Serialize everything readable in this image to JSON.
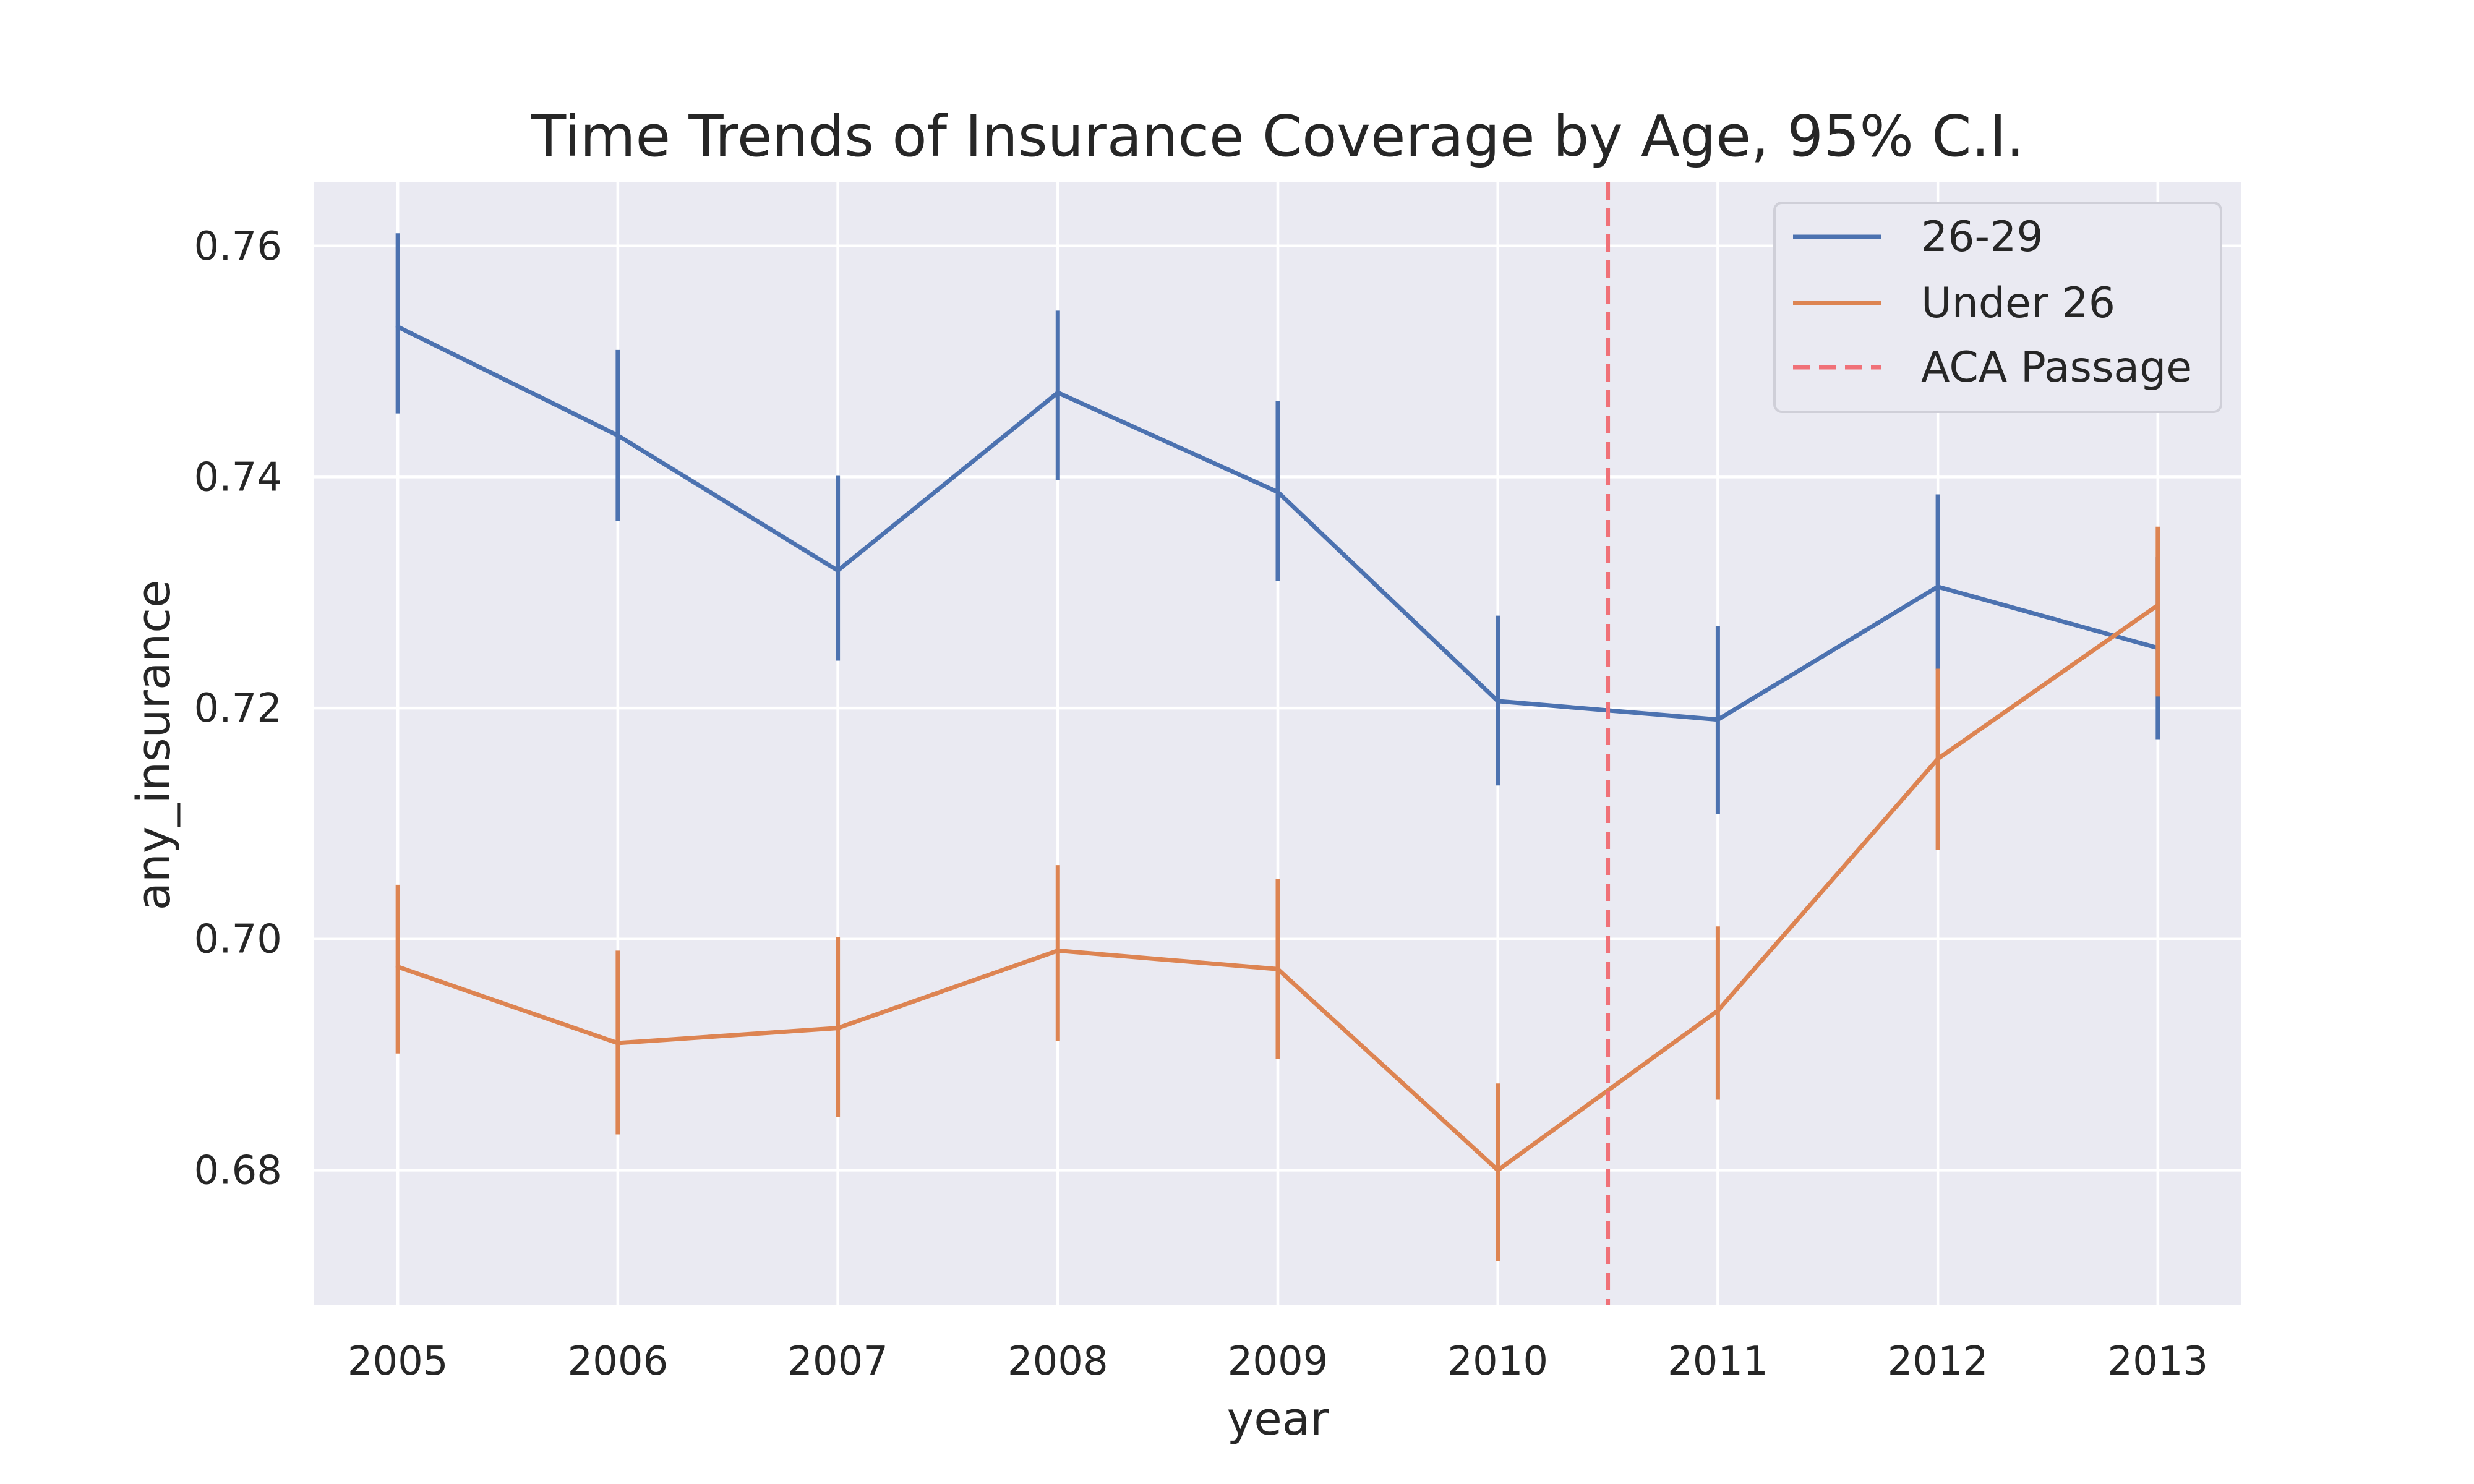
{
  "chart_data": {
    "type": "line",
    "title": "Time Trends of Insurance Coverage by Age, 95% C.I.",
    "xlabel": "year",
    "ylabel": "any_insurance",
    "x": [
      2005,
      2006,
      2007,
      2008,
      2009,
      2010,
      2011,
      2012,
      2013
    ],
    "xticks": [
      "2005",
      "2006",
      "2007",
      "2008",
      "2009",
      "2010",
      "2011",
      "2012",
      "2013"
    ],
    "xlim": [
      2004.62,
      2013.38
    ],
    "yticks": [
      "0.68",
      "0.70",
      "0.72",
      "0.74",
      "0.76"
    ],
    "ylim": [
      0.6683,
      0.7655
    ],
    "grid": true,
    "legend_position": "top-right",
    "series": [
      {
        "name": "26-29",
        "color": "#4c72b0",
        "values": [
          0.753,
          0.7436,
          0.7319,
          0.7473,
          0.7387,
          0.7206,
          0.719,
          0.7305,
          0.7252
        ],
        "ci_low": [
          0.7455,
          0.7362,
          0.7241,
          0.7397,
          0.731,
          0.7133,
          0.7108,
          0.7233,
          0.7173
        ],
        "ci_high": [
          0.7611,
          0.751,
          0.7401,
          0.7544,
          0.7466,
          0.728,
          0.7271,
          0.7385,
          0.7331
        ]
      },
      {
        "name": "Under 26",
        "color": "#dd8452",
        "values": [
          0.6976,
          0.691,
          0.6923,
          0.699,
          0.6974,
          0.68,
          0.6938,
          0.7156,
          0.7289
        ],
        "ci_low": [
          0.6901,
          0.6831,
          0.6846,
          0.6912,
          0.6896,
          0.6721,
          0.6861,
          0.7077,
          0.721
        ],
        "ci_high": [
          0.7047,
          0.699,
          0.7002,
          0.7064,
          0.7052,
          0.6875,
          0.7011,
          0.7234,
          0.7357
        ]
      }
    ],
    "annotations": [
      {
        "name": "ACA Passage",
        "type": "vline",
        "x": 2010.5,
        "color": "#f07178",
        "style": "dashed"
      }
    ]
  }
}
